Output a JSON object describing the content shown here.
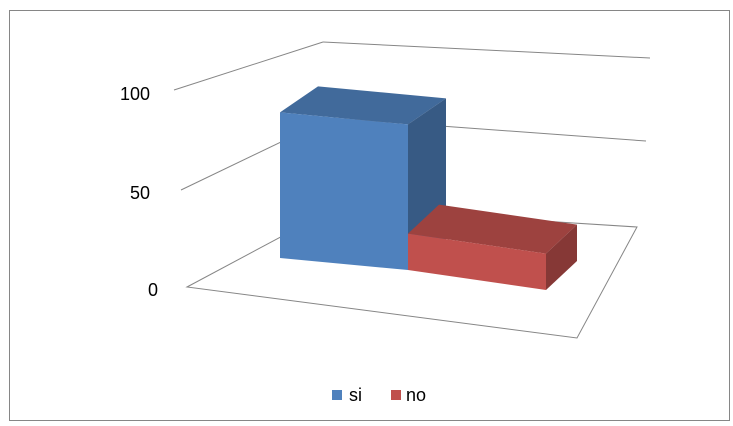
{
  "chart_data": {
    "type": "bar",
    "style": "3d-clustered-column",
    "categories": [
      ""
    ],
    "series": [
      {
        "name": "si",
        "values": [
          80
        ],
        "color": "#4F81BD"
      },
      {
        "name": "no",
        "values": [
          20
        ],
        "color": "#C0504D"
      }
    ],
    "ylim": [
      0,
      100
    ],
    "yticks": [
      0,
      50,
      100
    ],
    "xlabel": "",
    "ylabel": "",
    "title": "",
    "grid": true,
    "legend": "bottom"
  }
}
